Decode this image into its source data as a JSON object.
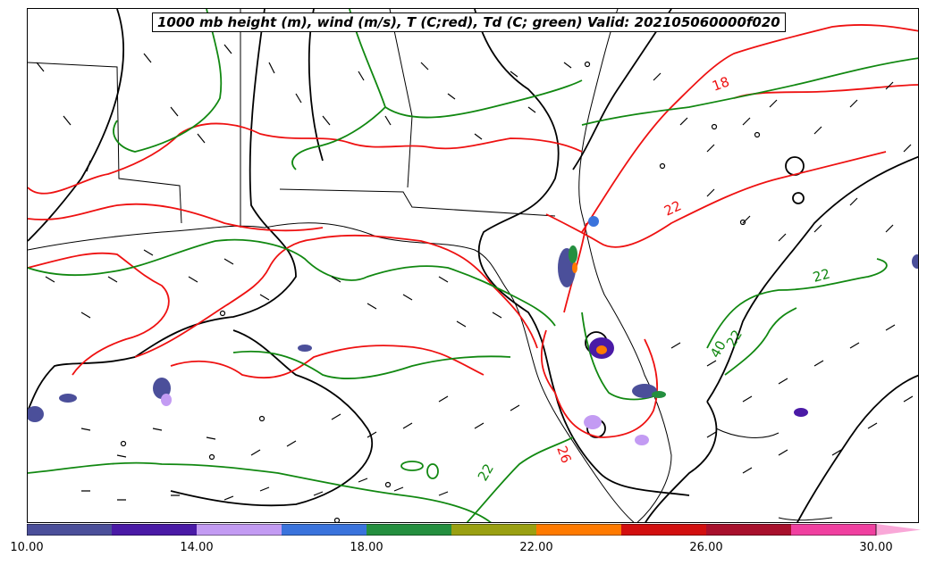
{
  "title": "1000 mb height (m), wind (m/s), T (C;red), Td (C; green) Valid: 202105060000f020",
  "colors": {
    "temperature": "#ee1111",
    "dewpoint": "#118811",
    "height": "#000000",
    "borders": "#000000"
  },
  "contour_labels": [
    {
      "text": "18",
      "color": "red"
    },
    {
      "text": "22",
      "color": "red"
    },
    {
      "text": "22",
      "color": "green"
    },
    {
      "text": "22",
      "color": "green"
    },
    {
      "text": "22",
      "color": "green"
    },
    {
      "text": "40",
      "color": "green"
    },
    {
      "text": "26",
      "color": "red"
    }
  ],
  "colorbar": {
    "ticks": [
      "10.00",
      "14.00",
      "18.00",
      "22.00",
      "26.00",
      "30.00"
    ],
    "colors": [
      "#4b4f9a",
      "#4a1aa6",
      "#c39bf3",
      "#3a73dc",
      "#248f3f",
      "#9aa012",
      "#ff7a00",
      "#d20f0f",
      "#a8102c",
      "#f040a0"
    ],
    "extend_color": "#f9a8d8"
  }
}
